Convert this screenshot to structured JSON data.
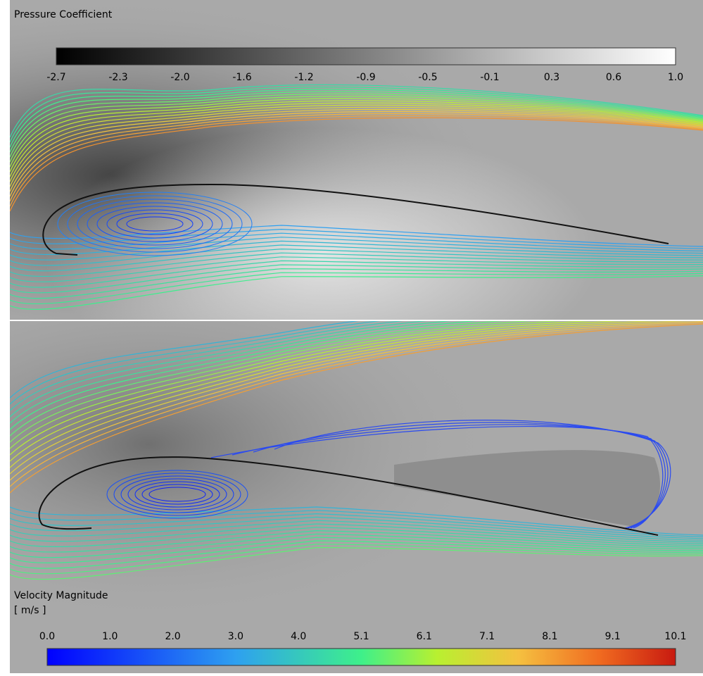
{
  "pressure": {
    "title": "Pressure Coefficient",
    "ticks": [
      "-2.7",
      "-2.3",
      "-2.0",
      "-1.6",
      "-1.2",
      "-0.9",
      "-0.5",
      "-0.1",
      "0.3",
      "0.6",
      "1.0"
    ]
  },
  "velocity": {
    "title": "Velocity Magnitude",
    "unit": "[ m/s ]",
    "ticks": [
      "0.0",
      "1.0",
      "2.0",
      "3.0",
      "4.0",
      "5.1",
      "6.1",
      "7.1",
      "8.1",
      "9.1",
      "10.1"
    ]
  }
}
